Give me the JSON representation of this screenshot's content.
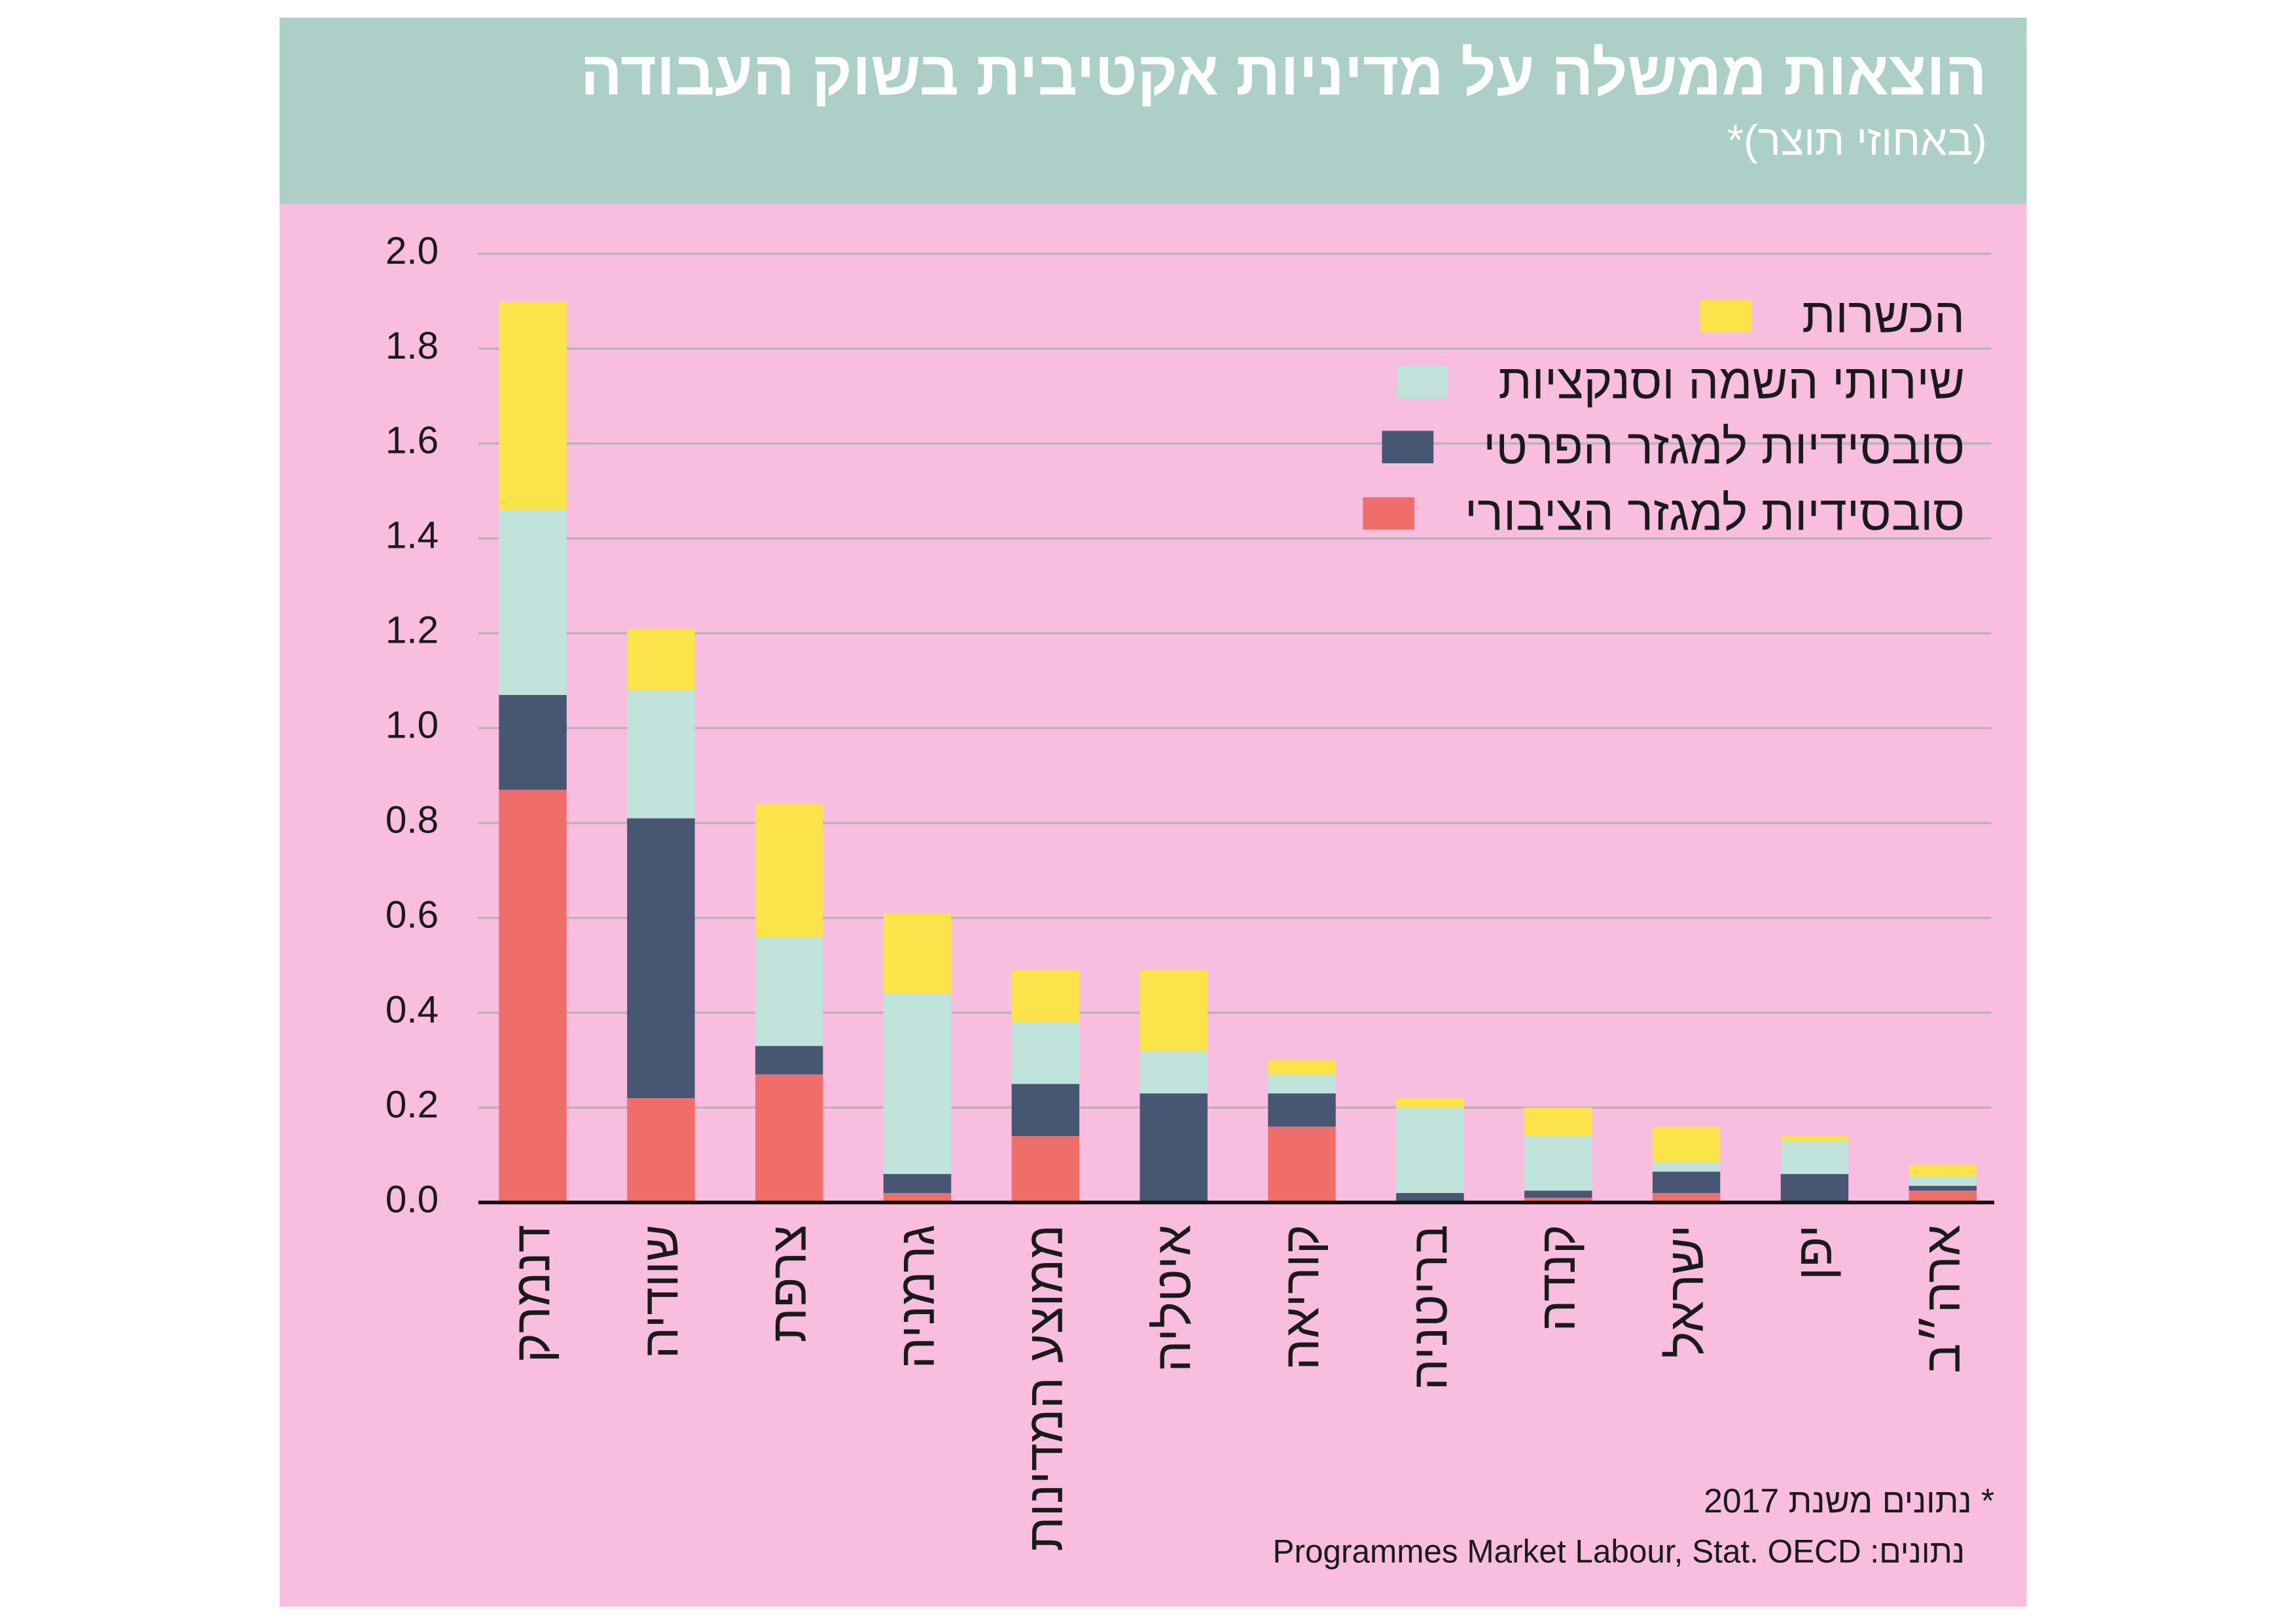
{
  "header": {
    "title": "הוצאות ממשלה על מדיניות אקטיבית בשוק העבודה",
    "subtitle": "(באחוזי תוצר)*"
  },
  "colors": {
    "header_bg": "#accfc8",
    "panel_bg": "#f9bde0",
    "training": "#fae44a",
    "services": "#c0e3dc",
    "private": "#475672",
    "public": "#ef6e6c"
  },
  "chart_data": {
    "type": "bar",
    "stacked": true,
    "title": "הוצאות ממשלה על מדיניות אקטיבית בשוק העבודה",
    "ylabel": "(באחוזי תוצר)*",
    "ylim": [
      0,
      2.0
    ],
    "yticks": [
      "0.0",
      "0.2",
      "0.4",
      "0.6",
      "0.8",
      "1.0",
      "1.2",
      "1.4",
      "1.6",
      "1.8",
      "2.0"
    ],
    "grid": true,
    "legend_position": "top-right",
    "categories": [
      "דנמרק",
      "שוודיה",
      "צרפת",
      "גרמניה",
      "ממוצע המדינות",
      "איטליה",
      "קוריאה",
      "בריטניה",
      "קנדה",
      "ישראל",
      "יפן",
      "ארה״ב"
    ],
    "series": [
      {
        "name": "סובסידיות למגזר הציבורי",
        "color": "#ef6e6c",
        "values": [
          0.87,
          0.22,
          0.27,
          0.02,
          0.14,
          0.0,
          0.16,
          0.0,
          0.01,
          0.02,
          0.0,
          0.025
        ]
      },
      {
        "name": "סובסידיות למגזר הפרטי",
        "color": "#475672",
        "values": [
          0.2,
          0.59,
          0.06,
          0.04,
          0.11,
          0.23,
          0.07,
          0.02,
          0.015,
          0.045,
          0.06,
          0.01
        ]
      },
      {
        "name": "שירותי השמה וסנקציות",
        "color": "#c0e3dc",
        "values": [
          0.39,
          0.27,
          0.23,
          0.38,
          0.13,
          0.09,
          0.04,
          0.18,
          0.115,
          0.02,
          0.07,
          0.02
        ]
      },
      {
        "name": "הכשרות",
        "color": "#fae44a",
        "values": [
          0.44,
          0.13,
          0.28,
          0.17,
          0.11,
          0.17,
          0.03,
          0.02,
          0.06,
          0.075,
          0.01,
          0.025
        ]
      }
    ]
  },
  "footnotes": {
    "year_note": "* נתונים משנת 2017",
    "source": "Programmes Market Labour, Stat. OECD :נתונים"
  }
}
